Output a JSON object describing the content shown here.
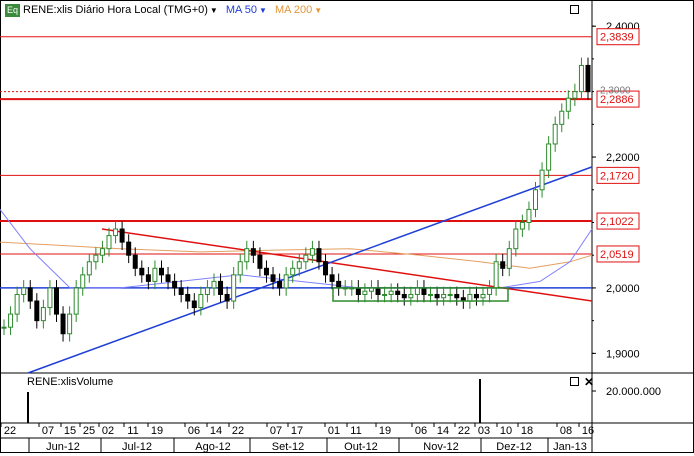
{
  "legend": {
    "icon_label": "Eq",
    "main_label": "RENE:xlis Diário Hora Local (TMG+0)",
    "ma50_label": "MA 50",
    "ma200_label": "MA 200"
  },
  "volume_panel": {
    "label": "RENE:xlisVolume",
    "axis_label": "20.000.000"
  },
  "colors": {
    "up_candle": "#2d8a2d",
    "down_candle": "#000000",
    "ma50": "#8080ff",
    "ma200": "#e3a060",
    "hline": "#e01010",
    "trend_red": "#e01010",
    "trend_blue": "#1f3fd6",
    "consolidation": "#2d8a2d"
  },
  "chart_data": {
    "type": "candlestick",
    "title": "RENE:xlis Diário Hora Local (TMG+0)",
    "ylim": [
      1.87,
      2.44
    ],
    "y_ticks": [
      "2,4000",
      "2,2000",
      "2,0000",
      "1,9000"
    ],
    "x_day_labels": [
      "22",
      "07",
      "15",
      "25",
      "02",
      "11",
      "19",
      "06",
      "14",
      "22",
      "07",
      "17",
      "01",
      "11",
      "19",
      "06",
      "14",
      "22",
      "03",
      "10",
      "18",
      "08",
      "16"
    ],
    "x_month_labels": [
      "Jun-12",
      "Jul-12",
      "Ago-12",
      "Set-12",
      "Out-12",
      "Nov-12",
      "Dez-12",
      "Jan-13"
    ],
    "price_levels": [
      {
        "label": "2,3839",
        "value": 2.3839
      },
      {
        "label": "2,2886",
        "value": 2.2886
      },
      {
        "label": "2,1720",
        "value": 2.172
      },
      {
        "label": "2,1022",
        "value": 2.1022
      },
      {
        "label": "2,0519",
        "value": 2.0519
      }
    ],
    "support_level": 2.0,
    "last_price_label": "2,3000",
    "series": [
      {
        "name": "MA 50"
      },
      {
        "name": "MA 200"
      }
    ]
  }
}
